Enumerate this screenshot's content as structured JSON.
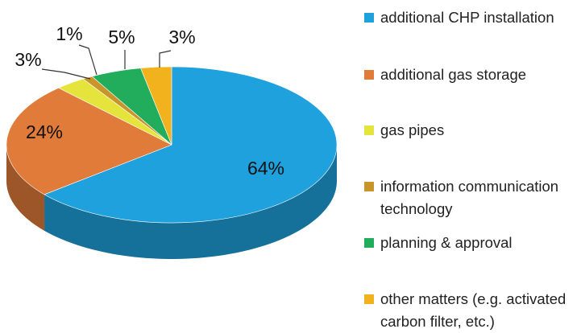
{
  "chart_data": {
    "type": "pie",
    "categories": [
      "additional CHP installation",
      "additional gas storage",
      "gas pipes",
      "information communication technology",
      "planning & approval",
      "other matters (e.g. activated carbon filter, etc.)"
    ],
    "values": [
      64,
      24,
      3,
      1,
      5,
      3
    ],
    "value_labels": [
      "64%",
      "24%",
      "3%",
      "1%",
      "5%",
      "3%"
    ],
    "colors": [
      "#1ea1dc",
      "#e07b39",
      "#e4e43c",
      "#c9952a",
      "#22ad5c",
      "#f2b21e"
    ]
  }
}
